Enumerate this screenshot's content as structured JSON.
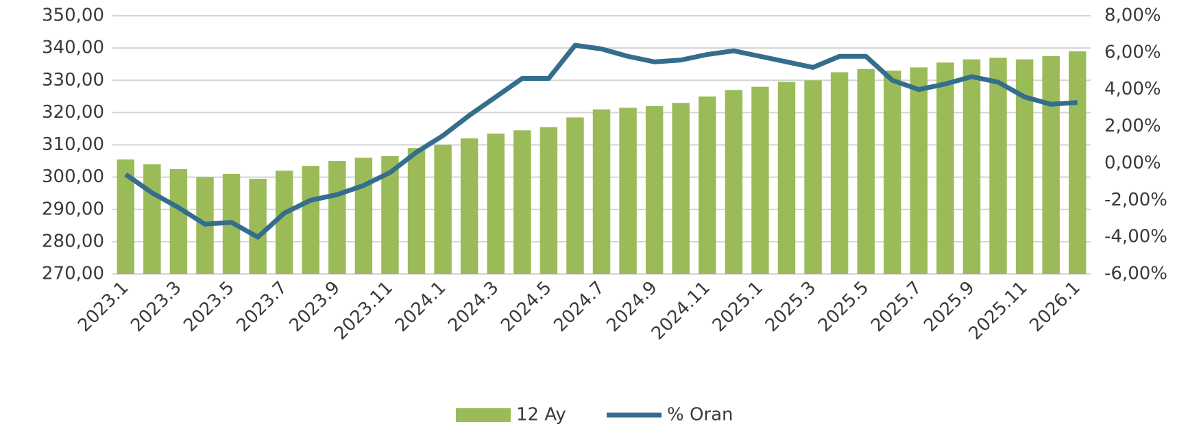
{
  "chart_data": {
    "type": "bar_line",
    "categories": [
      "2023.1",
      null,
      "2023.3",
      null,
      "2023.5",
      null,
      "2023.7",
      null,
      "2023.9",
      null,
      "2023.11",
      null,
      "2024.1",
      null,
      "2024.3",
      null,
      "2024.5",
      null,
      "2024.7",
      null,
      "2024.9",
      null,
      "2024.11",
      null,
      "2025.1",
      null,
      "2025.3",
      null,
      "2025.5",
      null,
      "2025.7",
      null,
      "2025.9",
      null,
      "2025.11",
      null,
      "2026.1"
    ],
    "series": [
      {
        "name": "12 Ay",
        "type": "bar",
        "color": "#9bbb59",
        "values": [
          305.5,
          304,
          302.5,
          300,
          301,
          299.5,
          302,
          303.5,
          305,
          306,
          306.5,
          309,
          310,
          312,
          313.5,
          314.5,
          315.5,
          318.5,
          321,
          321.5,
          322,
          323,
          325,
          327,
          328,
          329.5,
          330,
          332.5,
          333.5,
          333,
          334,
          335.5,
          336.5,
          337,
          336.5,
          337.5,
          339
        ]
      },
      {
        "name": "% Oran",
        "type": "line",
        "axis": "y2",
        "color": "#356e8c",
        "values": [
          -0.6,
          -1.6,
          -2.4,
          -3.3,
          -3.2,
          -4.0,
          -2.7,
          -2.0,
          -1.7,
          -1.2,
          -0.5,
          0.6,
          1.5,
          2.6,
          3.6,
          4.6,
          4.6,
          6.4,
          6.2,
          5.8,
          5.5,
          5.6,
          5.9,
          6.1,
          5.8,
          5.5,
          5.2,
          5.8,
          5.8,
          4.5,
          4.0,
          4.3,
          4.7,
          4.4,
          3.6,
          3.2,
          3.3
        ]
      }
    ],
    "ylim": [
      270,
      350
    ],
    "yticks": [
      {
        "value": 270,
        "label": "270,00"
      },
      {
        "value": 280,
        "label": "280,00"
      },
      {
        "value": 290,
        "label": "290,00"
      },
      {
        "value": 300,
        "label": "300,00"
      },
      {
        "value": 310,
        "label": "310,00"
      },
      {
        "value": 320,
        "label": "320,00"
      },
      {
        "value": 330,
        "label": "330,00"
      },
      {
        "value": 340,
        "label": "340,00"
      },
      {
        "value": 350,
        "label": "350,00"
      }
    ],
    "y2lim": [
      -6,
      8
    ],
    "y2ticks": [
      {
        "value": -6,
        "label": "-6,00%"
      },
      {
        "value": -4,
        "label": "-4,00%"
      },
      {
        "value": -2,
        "label": "-2,00%"
      },
      {
        "value": 0,
        "label": "0,00%"
      },
      {
        "value": 2,
        "label": "2,00%"
      },
      {
        "value": 4,
        "label": "4,00%"
      },
      {
        "value": 6,
        "label": "6,00%"
      },
      {
        "value": 8,
        "label": "8,00%"
      }
    ],
    "grid": true,
    "legend": "bottom"
  }
}
